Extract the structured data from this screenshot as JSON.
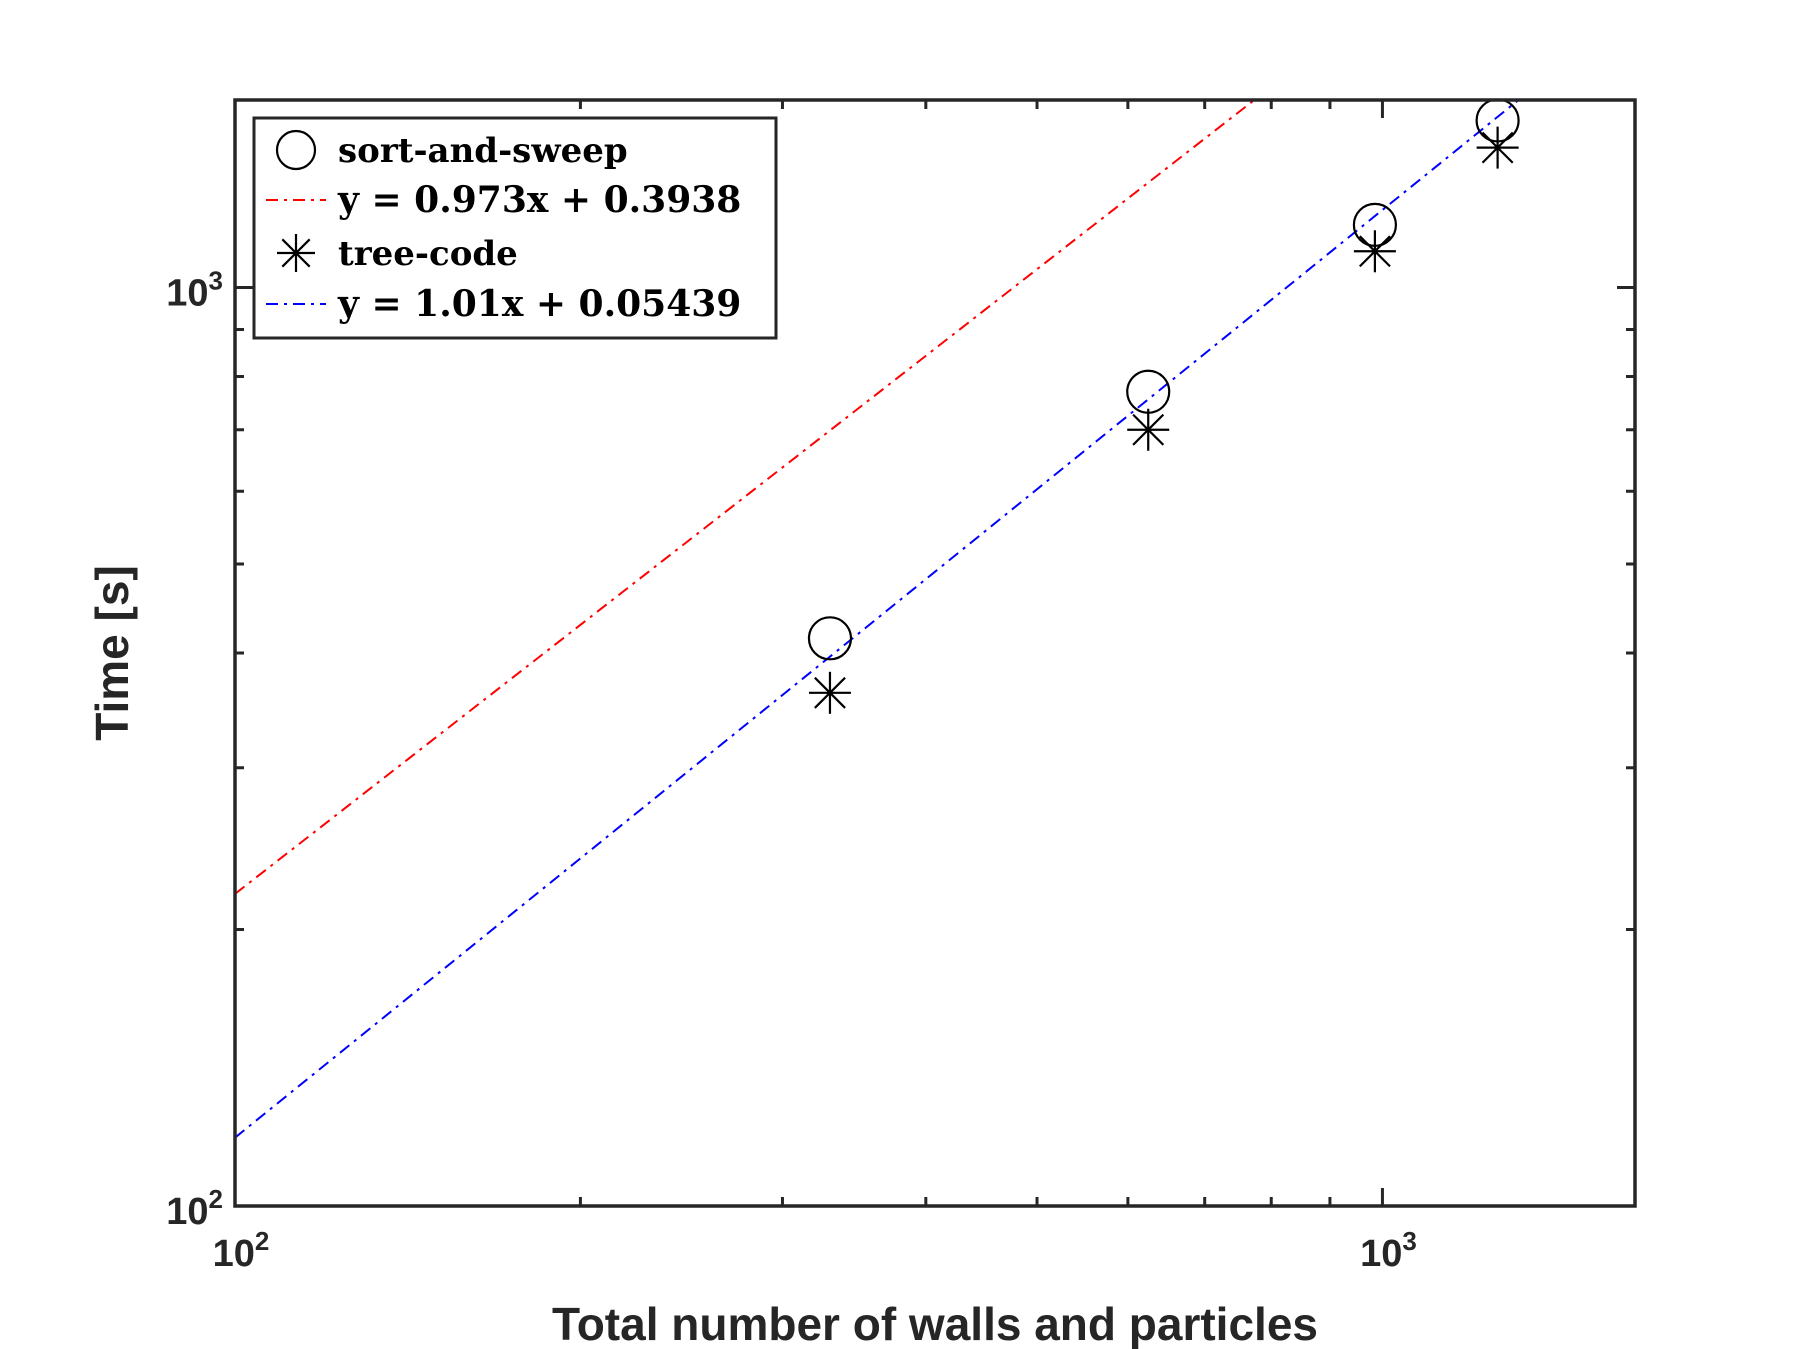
{
  "chart_data": {
    "type": "scatter",
    "title": "",
    "xlabel": "Total number of walls and particles",
    "ylabel": "Time [s]",
    "xscale": "log",
    "yscale": "log",
    "xlim": [
      100,
      1660
    ],
    "ylim": [
      100,
      1600
    ],
    "x_major_ticks": [
      {
        "value": 100,
        "base": "10",
        "exp": "2"
      },
      {
        "value": 1000,
        "base": "10",
        "exp": "3"
      }
    ],
    "y_major_ticks": [
      {
        "value": 100,
        "base": "10",
        "exp": "2"
      },
      {
        "value": 1000,
        "base": "10",
        "exp": "3"
      }
    ],
    "x_minor_ticks": [
      200,
      300,
      400,
      500,
      600,
      700,
      800,
      900
    ],
    "y_minor_ticks": [
      200,
      300,
      400,
      500,
      600,
      700,
      800,
      900
    ],
    "grid": false,
    "legend_position": "top-left",
    "series": [
      {
        "name": "sort-and-sweep",
        "kind": "markers",
        "marker": "circle",
        "color": "#000000",
        "x": [
          330,
          625,
          985,
          1260
        ],
        "y": [
          415,
          770,
          1170,
          1520
        ]
      },
      {
        "name": "y = 0.973x + 0.3938",
        "kind": "fit",
        "style": "dashdot",
        "color": "#ff0000",
        "slope": 0.973,
        "intercept": 0.3938,
        "x_range": [
          100,
          1660
        ]
      },
      {
        "name": "tree-code",
        "kind": "markers",
        "marker": "asterisk",
        "color": "#000000",
        "x": [
          330,
          625,
          985,
          1260
        ],
        "y": [
          362,
          700,
          1095,
          1420
        ]
      },
      {
        "name": "y = 1.01x + 0.05439",
        "kind": "fit",
        "style": "dashdot",
        "color": "#0000ff",
        "slope": 1.01,
        "intercept": 0.05439,
        "x_range": [
          100,
          1660
        ]
      }
    ],
    "legend": [
      {
        "label": "sort-and-sweep",
        "symbol": "circle",
        "color": "#000000",
        "math": false
      },
      {
        "label": "y = 0.973x + 0.3938",
        "symbol": "dashdot",
        "color": "#ff0000",
        "math": true
      },
      {
        "label": "tree-code",
        "symbol": "asterisk",
        "color": "#000000",
        "math": false
      },
      {
        "label": "y = 1.01x + 0.05439",
        "symbol": "dashdot",
        "color": "#0000ff",
        "math": true
      }
    ]
  }
}
